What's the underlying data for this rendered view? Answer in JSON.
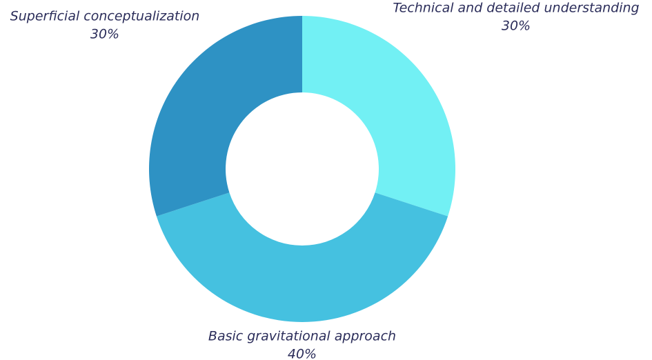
{
  "chart_data": {
    "type": "donut",
    "categories": [
      "Technical and detailed understanding",
      "Basic gravitational approach",
      "Superficial conceptualization"
    ],
    "values": [
      30,
      40,
      30
    ],
    "value_labels": [
      "30%",
      "40%",
      "30%"
    ],
    "colors": [
      "#72f0f4",
      "#45c1e0",
      "#2e92c4"
    ]
  }
}
